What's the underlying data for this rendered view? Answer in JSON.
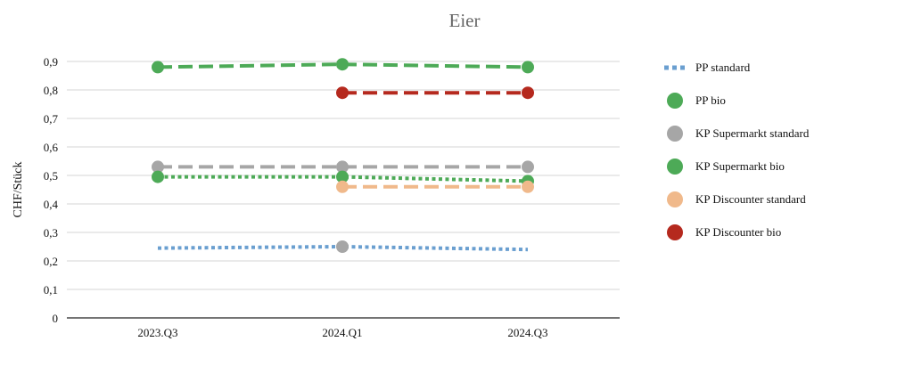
{
  "chart_data": {
    "type": "line",
    "title": "Eier",
    "ylabel": "CHF/Stück",
    "xlabel": "",
    "categories": [
      "2023.Q3",
      "2024.Q1",
      "2024.Q3"
    ],
    "ylim": [
      0,
      0.9
    ],
    "yticks": [
      "0",
      "0,1",
      "0,2",
      "0,3",
      "0,4",
      "0,5",
      "0,6",
      "0,7",
      "0,8",
      "0,9"
    ],
    "grid": true,
    "legend_position": "right",
    "series": [
      {
        "name": "PP standard",
        "values": [
          0.245,
          0.25,
          0.24
        ],
        "color": "#6a9fd0",
        "dash": "dotted",
        "markers": [
          false,
          false,
          false
        ]
      },
      {
        "name": "PP bio",
        "values": [
          0.88,
          0.89,
          0.88
        ],
        "color": "#4daa57",
        "dash": "dashed",
        "markers": [
          true,
          true,
          true
        ]
      },
      {
        "name": "KP Supermarkt standard",
        "values": [
          0.53,
          0.53,
          0.53
        ],
        "color": "#a6a6a6",
        "dash": "dashed",
        "markers": [
          true,
          true,
          true
        ]
      },
      {
        "name": "KP Supermarkt bio",
        "values": [
          0.495,
          0.495,
          0.48
        ],
        "color": "#4daa57",
        "dash": "dotted",
        "markers": [
          true,
          true,
          true
        ]
      },
      {
        "name": "KP Discounter standard",
        "values": [
          null,
          0.46,
          0.46
        ],
        "color": "#f0b98b",
        "dash": "dashed",
        "markers": [
          false,
          true,
          true
        ]
      },
      {
        "name": "KP Discounter bio",
        "values": [
          null,
          0.79,
          0.79
        ],
        "color": "#b5291e",
        "dash": "dashed",
        "markers": [
          false,
          true,
          true
        ]
      }
    ],
    "annotations": [
      {
        "category": "2024.Q1",
        "value": 0.25,
        "color": "#a6a6a6"
      }
    ]
  }
}
